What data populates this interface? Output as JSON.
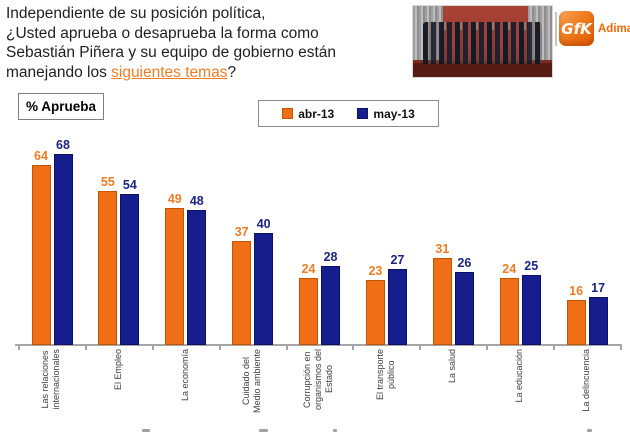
{
  "header": {
    "title_lines": [
      "Independiente de su posición política,",
      "¿Usted aprueba o desaprueba la forma como",
      "Sebastián Piñera y su equipo de gobierno están"
    ],
    "line4_prefix": "manejando los ",
    "link_text": "siguientes temas",
    "line4_suffix": "?"
  },
  "branding": {
    "logo_text": "GfK",
    "brand_name": "Adimark",
    "brand_color": "#ED6B06"
  },
  "chart_label_box": {
    "label": "% Aprueba"
  },
  "chart_data": {
    "type": "bar",
    "title": "% Aprueba",
    "categories": [
      "Las relaciones\ninternacionales",
      "El Empleo",
      "La economía",
      "Cuidado del\nMedio ambiente",
      "Corrupción en\norganismos del\nEstado",
      "El transporte\npúblico",
      "La salud",
      "La educación",
      "La delincuencia"
    ],
    "series": [
      {
        "name": "abr-13",
        "color": "#F06E15",
        "border": "#C25404",
        "label_color": "#ED7D23",
        "values": [
          64,
          55,
          49,
          37,
          24,
          23,
          31,
          24,
          16
        ]
      },
      {
        "name": "may-13",
        "color": "#161D8D",
        "border": "#0C1166",
        "label_color": "#1C2480",
        "values": [
          68,
          54,
          48,
          40,
          28,
          27,
          26,
          25,
          17
        ]
      }
    ],
    "ylim": [
      0,
      72
    ],
    "grid": false,
    "legend_position": "top",
    "value_labels": true,
    "xlabel": "",
    "ylabel": "% Aprueba"
  }
}
